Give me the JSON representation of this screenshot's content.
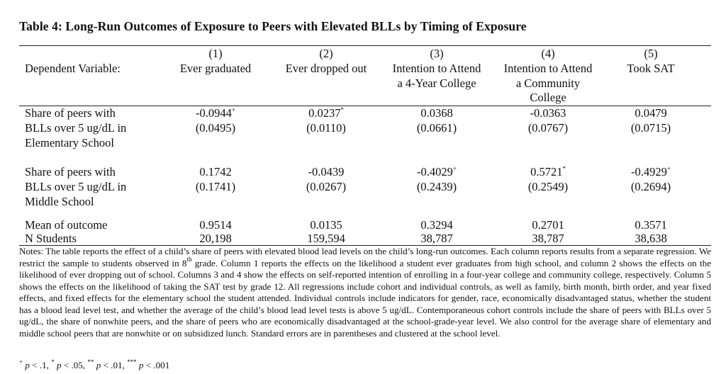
{
  "title": "Table 4: Long-Run Outcomes of Exposure to Peers with Elevated BLLs by Timing of Exposure",
  "header": {
    "dep_var_label": "Dependent Variable:",
    "columns": [
      {
        "num": "(1)",
        "lines": [
          "Ever graduated"
        ]
      },
      {
        "num": "(2)",
        "lines": [
          "Ever dropped out"
        ]
      },
      {
        "num": "(3)",
        "lines": [
          "Intention to Attend",
          "a 4-Year College"
        ]
      },
      {
        "num": "(4)",
        "lines": [
          "Intention to Attend",
          "a Community",
          "College"
        ]
      },
      {
        "num": "(5)",
        "lines": [
          "Took SAT"
        ]
      }
    ]
  },
  "rows": [
    {
      "label_lines": [
        "Share of peers with",
        "BLLs over 5 ug/dL in",
        "Elementary School"
      ],
      "coefs": [
        {
          "value": "-0.0944",
          "sig": "+"
        },
        {
          "value": "0.0237",
          "sig": "*"
        },
        {
          "value": "0.0368",
          "sig": ""
        },
        {
          "value": "-0.0363",
          "sig": ""
        },
        {
          "value": "0.0479",
          "sig": ""
        }
      ],
      "ses": [
        "(0.0495)",
        "(0.0110)",
        "(0.0661)",
        "(0.0767)",
        "(0.0715)"
      ]
    },
    {
      "label_lines": [
        "Share of peers with",
        "BLLs over 5 ug/dL in",
        "Middle School"
      ],
      "coefs": [
        {
          "value": "0.1742",
          "sig": ""
        },
        {
          "value": "-0.0439",
          "sig": ""
        },
        {
          "value": "-0.4029",
          "sig": "+"
        },
        {
          "value": "0.5721",
          "sig": "*"
        },
        {
          "value": "-0.4929",
          "sig": "+"
        }
      ],
      "ses": [
        "(0.1741)",
        "(0.0267)",
        "(0.2439)",
        "(0.2549)",
        "(0.2694)"
      ]
    }
  ],
  "mean_row": {
    "label": "Mean of outcome",
    "values": [
      "0.9514",
      "0.0135",
      "0.3294",
      "0.2701",
      "0.3571"
    ]
  },
  "n_row": {
    "label": "N Students",
    "values": [
      "20,198",
      "159,594",
      "38,787",
      "38,787",
      "38,638"
    ]
  },
  "notes": {
    "part1": "Notes: The table reports the effect of a child’s share of peers with elevated blood lead levels on the child’s long-run outcomes. Each column reports results from a separate regression. We restrict the sample to students observed in 8",
    "part1_sup": "th",
    "part2": " grade. Column 1 reports the effects on the likelihood a student ever graduates from high school, and column 2 shows the effects on the likelihood of ever dropping out of school. Columns 3 and 4 show the effects on self-reported intention of enrolling in a four-year college and community college, respectively. Column 5 shows the effects on the likelihood of taking the SAT test by grade 12. All regressions include cohort and individual controls, as well as family, birth month, birth order, and year fixed effects, and fixed effects for the elementary school the student attended. Individual controls include indicators for gender, race, economically disadvantaged status, whether the student has a blood lead level test, and whether the average of the child’s blood lead level tests is above 5 ug/dL. Contemporaneous cohort controls include the share of peers with BLLs over 5 ug/dL, the share of nonwhite peers, and the share of peers who are economically disadvantaged at the school-grade-year level. We also control for the average share of elementary and middle school peers that are nonwhite or on subsidized lunch. Standard errors are in parentheses and clustered at the school level."
  },
  "footnote": {
    "items": [
      {
        "sym": "+",
        "p": "p",
        "thr": " < .1, "
      },
      {
        "sym": "*",
        "p": "p",
        "thr": " < .05, "
      },
      {
        "sym": "**",
        "p": "p",
        "thr": " < .01, "
      },
      {
        "sym": "***",
        "p": "p",
        "thr": " < .001"
      }
    ]
  }
}
